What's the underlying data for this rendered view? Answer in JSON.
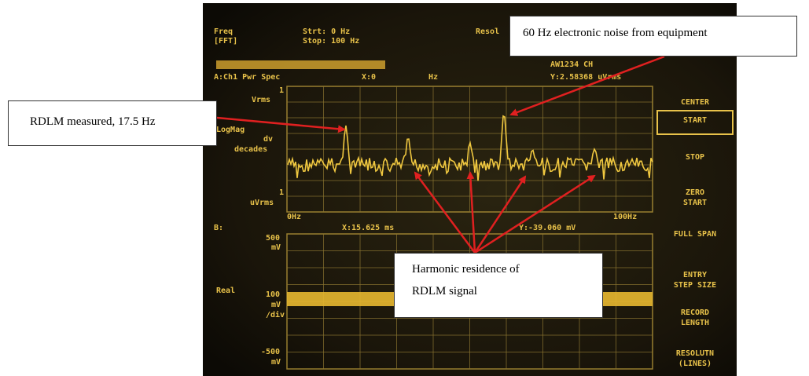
{
  "annotations": {
    "noise": "60 Hz electronic noise from equipment",
    "measured": "RDLM measured, 17.5 Hz",
    "harmonic": [
      "Harmonic residence of",
      "RDLM signal"
    ]
  },
  "screen": {
    "labels": [
      "Freq",
      "[FFT]",
      "Strt: 0 Hz",
      "Stop: 100 Hz",
      "Resol",
      "AW1234 CH",
      "A:Ch1 Pwr Spec",
      "X:0",
      "Hz",
      "Y:2.58368 uVrms",
      "1",
      "Vrms",
      "LogMag",
      "dv",
      "decades",
      "1",
      "uVrms",
      "0Hz",
      "100Hz",
      "B:",
      "X:15.625 ms",
      "Y:-39.060 mV",
      "500",
      "mV",
      "Real",
      "100",
      "mV",
      "/div",
      "-500",
      "mV"
    ],
    "softkeys": [
      [
        "CENTER"
      ],
      [
        "START"
      ],
      [
        "STOP"
      ],
      [
        "ZERO",
        "START"
      ],
      [
        "FULL SPAN"
      ],
      [
        "ENTRY",
        "STEP SIZE"
      ],
      [
        "RECORD",
        "LENGTH"
      ],
      [
        "RESOLUTN",
        "(LINES)"
      ]
    ]
  }
}
